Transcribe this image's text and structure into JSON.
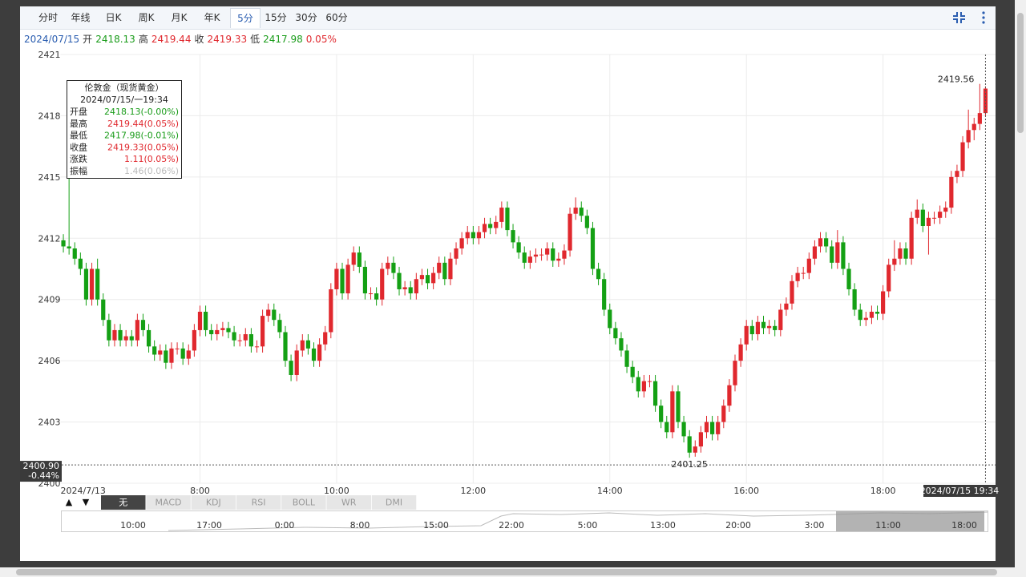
{
  "toolbar": {
    "tabs": [
      "分时",
      "年线",
      "日K",
      "周K",
      "月K",
      "年K",
      "5分",
      "15分",
      "30分",
      "60分"
    ],
    "active": "5分"
  },
  "info_bar": {
    "date": "2024/07/15",
    "items": [
      {
        "label": "开",
        "value": 2418.13,
        "color": "#1a9c1a"
      },
      {
        "label": "高",
        "value": 2419.44,
        "color": "#e0282e"
      },
      {
        "label": "收",
        "value": 2419.33,
        "color": "#e0282e"
      },
      {
        "label": "低",
        "value": 2417.98,
        "color": "#1a9c1a"
      }
    ],
    "change": "0.05%",
    "change_color": "#e0282e"
  },
  "tooltip": {
    "title": "伦敦金（现货黄金）",
    "date": "2024/07/15/一19:34",
    "rows": [
      {
        "label": "开盘",
        "value": "2418.13(-0.00%)",
        "color": "#1a9c1a"
      },
      {
        "label": "最高",
        "value": "2419.44(0.05%)",
        "color": "#e0282e"
      },
      {
        "label": "最低",
        "value": "2417.98(-0.01%)",
        "color": "#1a9c1a"
      },
      {
        "label": "收盘",
        "value": "2419.33(0.05%)",
        "color": "#e0282e"
      },
      {
        "label": "涨跌",
        "value": "1.11(0.05%)",
        "color": "#e0282e"
      },
      {
        "label": "振幅",
        "value": "1.46(0.06%)",
        "color": "#bbbbbb"
      }
    ]
  },
  "indicators": {
    "arrows": [
      "▲",
      "▼"
    ],
    "tabs": [
      "无",
      "MACD",
      "KDJ",
      "RSI",
      "BOLL",
      "WR",
      "DMI"
    ],
    "active": "无"
  },
  "navigator": {
    "labels": [
      "10:00",
      "17:00",
      "0:00",
      "8:00",
      "15:00",
      "22:00",
      "5:00",
      "13:00",
      "20:00",
      "3:00",
      "11:00",
      "18:00"
    ]
  },
  "chart_data": {
    "type": "candlestick",
    "up_color": "#e0282e",
    "down_color": "#14a014",
    "grid": true,
    "ylim": [
      2400,
      2421
    ],
    "yticks": [
      2400,
      2403,
      2406,
      2409,
      2412,
      2415,
      2418,
      2421
    ],
    "categories": [
      "2024/7/13",
      null,
      null,
      null,
      null,
      null,
      null,
      null,
      null,
      null,
      null,
      null,
      null,
      null,
      null,
      null,
      null,
      null,
      null,
      null,
      null,
      null,
      null,
      null,
      "8:00",
      null,
      null,
      null,
      null,
      null,
      null,
      null,
      null,
      null,
      null,
      null,
      null,
      null,
      null,
      null,
      null,
      null,
      null,
      null,
      null,
      null,
      null,
      null,
      "10:00",
      null,
      null,
      null,
      null,
      null,
      null,
      null,
      null,
      null,
      null,
      null,
      null,
      null,
      null,
      null,
      null,
      null,
      null,
      null,
      null,
      null,
      null,
      null,
      "12:00",
      null,
      null,
      null,
      null,
      null,
      null,
      null,
      null,
      null,
      null,
      null,
      null,
      null,
      null,
      null,
      null,
      null,
      null,
      null,
      null,
      null,
      null,
      null,
      "14:00",
      null,
      null,
      null,
      null,
      null,
      null,
      null,
      null,
      null,
      null,
      null,
      null,
      null,
      null,
      null,
      null,
      null,
      null,
      null,
      null,
      null,
      null,
      null,
      "16:00",
      null,
      null,
      null,
      null,
      null,
      null,
      null,
      null,
      null,
      null,
      null,
      null,
      null,
      null,
      null,
      null,
      null,
      null,
      null,
      null,
      null,
      null,
      null,
      "18:00",
      null,
      null,
      null,
      null,
      null,
      null,
      null,
      null,
      null,
      null,
      null,
      null,
      null,
      null,
      null,
      null,
      null,
      "2024/07/15 19:34"
    ],
    "open": [
      2411.9,
      2411.6,
      2411.5,
      2411,
      2410.5,
      2409,
      2410.5,
      2409,
      2408,
      2407,
      2407.5,
      2407,
      2407.2,
      2407,
      2408,
      2407.5,
      2406.7,
      2406.3,
      2406.5,
      2405.9,
      2406.6,
      2406.6,
      2406.1,
      2406.5,
      2407.5,
      2408.4,
      2407.5,
      2407.3,
      2407.5,
      2407.6,
      2407.4,
      2407,
      2407,
      2407.3,
      2406.7,
      2406.7,
      2408.2,
      2408.5,
      2408,
      2407.4,
      2406,
      2405.3,
      2406.5,
      2407,
      2406.6,
      2406,
      2406.8,
      2407.4,
      2409.5,
      2410.5,
      2409.3,
      2410.7,
      2411.3,
      2410.6,
      2409.3,
      2409.3,
      2409,
      2410.5,
      2410.8,
      2410.3,
      2409.5,
      2409.6,
      2409.3,
      2410,
      2410.2,
      2409.8,
      2410.3,
      2410.8,
      2410,
      2411,
      2411.5,
      2412,
      2412.3,
      2412,
      2412.3,
      2412.7,
      2412.5,
      2412.8,
      2413.5,
      2412.4,
      2411.8,
      2411.3,
      2410.8,
      2411.1,
      2411.2,
      2411.2,
      2411.5,
      2410.9,
      2411,
      2411.4,
      2413.2,
      2413.5,
      2413.1,
      2412.5,
      2410.5,
      2410,
      2408.5,
      2407.6,
      2407.1,
      2406.5,
      2405.7,
      2405.2,
      2404.5,
      2405,
      2405,
      2403.8,
      2403,
      2402.5,
      2404.5,
      2403,
      2402.3,
      2401.5,
      2401.8,
      2402.5,
      2403,
      2402.4,
      2403,
      2403.8,
      2404.8,
      2406,
      2406.8,
      2407.7,
      2407.3,
      2407.9,
      2407.6,
      2407.7,
      2407.5,
      2408.5,
      2408.8,
      2409.9,
      2410.3,
      2410.3,
      2411,
      2411.6,
      2412,
      2411.6,
      2410.8,
      2411.8,
      2410.5,
      2409.5,
      2408.5,
      2408,
      2408.1,
      2408.4,
      2408.3,
      2409.4,
      2410.7,
      2411,
      2411.5,
      2411,
      2413,
      2413.4,
      2412.6,
      2413,
      2413,
      2413.3,
      2413.5,
      2415,
      2415.3,
      2416.7,
      2417.3,
      2417.6,
      2418.13
    ],
    "high": [
      2412.2,
      2415,
      2411.8,
      2411.3,
      2410.8,
      2410.8,
      2411,
      2409.3,
      2408.3,
      2407.8,
      2407.8,
      2407.5,
      2407.5,
      2408.3,
      2408.3,
      2407.8,
      2407,
      2406.8,
      2406.8,
      2406.9,
      2406.9,
      2406.9,
      2406.8,
      2407.8,
      2408.7,
      2408.7,
      2407.8,
      2407.8,
      2407.9,
      2407.9,
      2407.7,
      2407.3,
      2407.6,
      2407.6,
      2407,
      2408.5,
      2408.8,
      2408.8,
      2408.3,
      2407.7,
      2406.3,
      2406.8,
      2407.3,
      2407.3,
      2406.9,
      2407.1,
      2407.7,
      2409.8,
      2410.8,
      2410.8,
      2411,
      2411.6,
      2411.6,
      2410.9,
      2409.6,
      2409.6,
      2410.8,
      2411.1,
      2411.1,
      2410.6,
      2409.9,
      2409.9,
      2410.3,
      2410.5,
      2410.5,
      2410.6,
      2411.1,
      2411.1,
      2411.3,
      2411.8,
      2412.3,
      2412.6,
      2412.6,
      2412.6,
      2413,
      2413,
      2413.1,
      2413.8,
      2413.8,
      2412.7,
      2412.1,
      2411.6,
      2411.4,
      2411.5,
      2411.5,
      2411.8,
      2411.8,
      2411.3,
      2411.7,
      2413.5,
      2414,
      2413.8,
      2413.4,
      2412.8,
      2410.8,
      2410.3,
      2408.8,
      2407.9,
      2407.4,
      2406.8,
      2406,
      2405.5,
      2405.3,
      2405.3,
      2405.3,
      2404.1,
      2403.3,
      2404.8,
      2404.8,
      2403.3,
      2402.6,
      2402.1,
      2402.8,
      2403.3,
      2403.3,
      2403.3,
      2404.1,
      2405.1,
      2406.3,
      2407.1,
      2408,
      2408,
      2408.2,
      2408.2,
      2408,
      2408,
      2408.8,
      2409.1,
      2410.2,
      2410.6,
      2410.6,
      2411.3,
      2411.9,
      2412.3,
      2412.3,
      2411.9,
      2412.4,
      2412.1,
      2410.8,
      2409.8,
      2408.8,
      2408.4,
      2408.7,
      2408.7,
      2409.7,
      2411,
      2411.9,
      2411.8,
      2411.8,
      2413.3,
      2413.9,
      2413.7,
      2413.3,
      2413.3,
      2413.6,
      2413.8,
      2415.3,
      2415.6,
      2417,
      2418.3,
      2417.9,
      2419.56,
      2419.44
    ],
    "low": [
      2411.3,
      2411.2,
      2410.7,
      2410.2,
      2408.7,
      2408.7,
      2408.7,
      2407.7,
      2406.7,
      2406.7,
      2406.7,
      2406.7,
      2406.7,
      2406.7,
      2407.2,
      2406.4,
      2406,
      2406,
      2405.6,
      2405.6,
      2406.3,
      2405.8,
      2405.8,
      2406.2,
      2407.2,
      2407.2,
      2407,
      2407,
      2407.2,
      2407.1,
      2406.7,
      2406.7,
      2406.7,
      2406.4,
      2406.4,
      2406.4,
      2407.9,
      2407.7,
      2407.1,
      2405.7,
      2405,
      2405,
      2406.2,
      2406.3,
      2405.7,
      2405.7,
      2406.5,
      2407.1,
      2409.2,
      2409,
      2409,
      2410.4,
      2410.3,
      2409,
      2409,
      2408.7,
      2408.7,
      2410.2,
      2410,
      2409.2,
      2409.2,
      2409,
      2409,
      2409.7,
      2409.5,
      2409.5,
      2410,
      2409.7,
      2409.7,
      2410.7,
      2411.2,
      2411.7,
      2411.7,
      2411.7,
      2412,
      2412.2,
      2412.2,
      2412.5,
      2412.1,
      2411.5,
      2411,
      2410.5,
      2410.5,
      2410.8,
      2410.9,
      2410.9,
      2410.6,
      2410.6,
      2410.7,
      2411.1,
      2412.9,
      2412.8,
      2412.2,
      2410.2,
      2409.7,
      2408.2,
      2407.3,
      2406.8,
      2406.2,
      2405.4,
      2404.9,
      2404.2,
      2404.2,
      2404.7,
      2403.5,
      2402.7,
      2402.2,
      2402.2,
      2402.7,
      2402,
      2401.25,
      2401.3,
      2401.5,
      2402.2,
      2402.1,
      2402.1,
      2402.7,
      2403.5,
      2404.5,
      2405.7,
      2406.5,
      2407,
      2407,
      2407.3,
      2407.3,
      2407.2,
      2407.2,
      2408.2,
      2408.5,
      2409.6,
      2410,
      2410,
      2410.7,
      2411.3,
      2411.3,
      2410.5,
      2410.5,
      2410.2,
      2409.2,
      2408.2,
      2407.7,
      2407.7,
      2407.8,
      2408,
      2408,
      2409.1,
      2410.4,
      2410.7,
      2410.7,
      2410.7,
      2412.7,
      2412.3,
      2411.2,
      2412.7,
      2412.7,
      2413,
      2413.2,
      2414.7,
      2415,
      2416.4,
      2416.8,
      2417.3,
      2417.98
    ],
    "close": [
      2411.6,
      2411.5,
      2411,
      2410.5,
      2409,
      2410.5,
      2409,
      2408,
      2407,
      2407.5,
      2407,
      2407.2,
      2407,
      2408,
      2407.5,
      2406.7,
      2406.3,
      2406.5,
      2405.9,
      2406.6,
      2406.6,
      2406.1,
      2406.5,
      2407.5,
      2408.4,
      2407.5,
      2407.3,
      2407.5,
      2407.6,
      2407.4,
      2407,
      2407,
      2407.3,
      2406.7,
      2406.7,
      2408.2,
      2408.5,
      2408,
      2407.4,
      2406,
      2405.3,
      2406.5,
      2407,
      2406.6,
      2406,
      2406.8,
      2407.4,
      2409.5,
      2410.5,
      2409.3,
      2410.7,
      2411.3,
      2410.6,
      2409.3,
      2409.3,
      2409,
      2410.5,
      2410.8,
      2410.3,
      2409.5,
      2409.6,
      2409.3,
      2410,
      2410.2,
      2409.8,
      2410.3,
      2410.8,
      2410,
      2411,
      2411.5,
      2412,
      2412.3,
      2412,
      2412.3,
      2412.7,
      2412.5,
      2412.8,
      2413.5,
      2412.4,
      2411.8,
      2411.3,
      2410.8,
      2411.1,
      2411.2,
      2411.2,
      2411.5,
      2410.9,
      2411,
      2411.4,
      2413.2,
      2413.5,
      2413.1,
      2412.5,
      2410.5,
      2410,
      2408.5,
      2407.6,
      2407.1,
      2406.5,
      2405.7,
      2405.2,
      2404.5,
      2405,
      2405,
      2403.8,
      2403,
      2402.5,
      2404.5,
      2403,
      2402.3,
      2401.5,
      2401.8,
      2402.5,
      2403,
      2402.4,
      2403,
      2403.8,
      2404.8,
      2406,
      2406.8,
      2407.7,
      2407.3,
      2407.9,
      2407.6,
      2407.7,
      2407.5,
      2408.5,
      2408.8,
      2409.9,
      2410.3,
      2410.3,
      2411,
      2411.6,
      2412,
      2411.6,
      2410.8,
      2411.8,
      2410.5,
      2409.5,
      2408.5,
      2408,
      2408.1,
      2408.4,
      2408.3,
      2409.4,
      2410.7,
      2411,
      2411.5,
      2411,
      2413,
      2413.4,
      2412.6,
      2413,
      2413,
      2413.3,
      2413.5,
      2415,
      2415.3,
      2416.7,
      2417.3,
      2417.6,
      2418.13,
      2419.33
    ],
    "max_label": "2419.56",
    "min_label": "2401.25",
    "crosshair": {
      "value": 2400.9,
      "label": "2400.90",
      "change_label": "-0.44%"
    }
  }
}
